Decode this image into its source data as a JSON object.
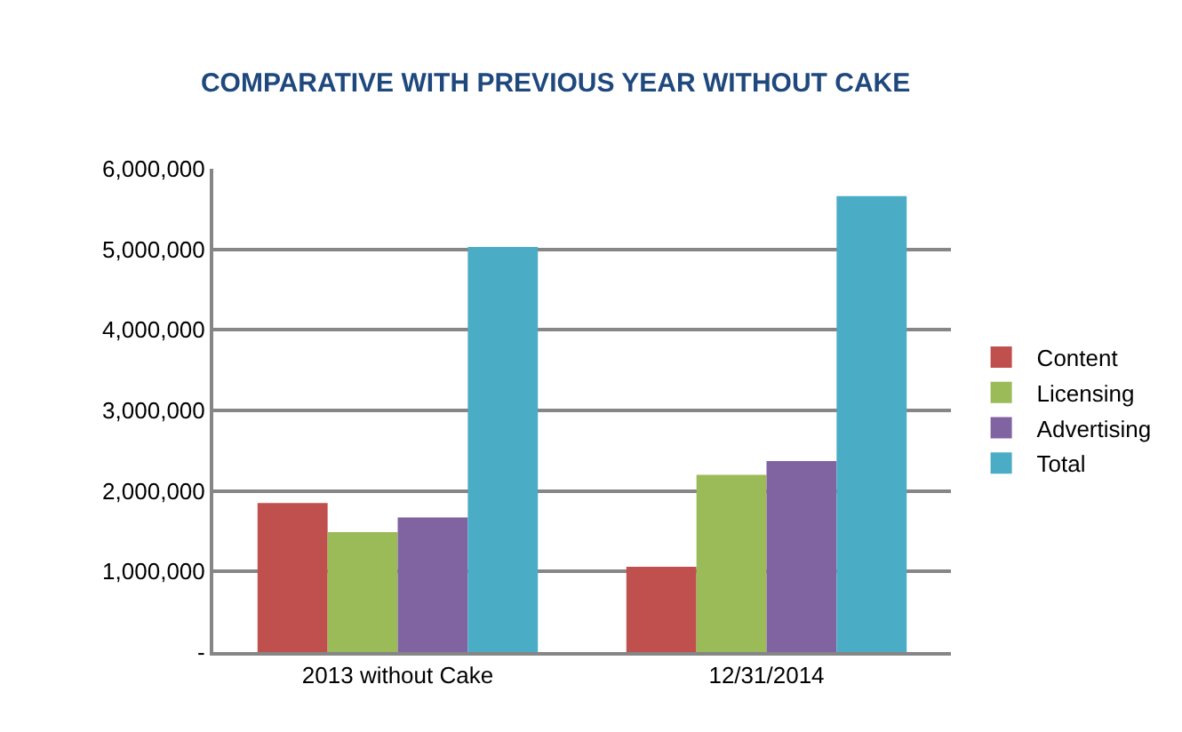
{
  "chart_data": {
    "type": "bar",
    "title": "COMPARATIVE WITH PREVIOUS YEAR WITHOUT CAKE",
    "categories": [
      "2013 without Cake",
      "12/31/2014"
    ],
    "series": [
      {
        "name": "Content",
        "color": "#c0504d",
        "values": [
          1850000,
          1060000
        ]
      },
      {
        "name": "Licensing",
        "color": "#9bbb59",
        "values": [
          1490000,
          2200000
        ]
      },
      {
        "name": "Advertising",
        "color": "#8064a2",
        "values": [
          1670000,
          2370000
        ]
      },
      {
        "name": "Total",
        "color": "#4bacc6",
        "values": [
          5030000,
          5660000
        ]
      }
    ],
    "ylim": [
      0,
      6000000
    ],
    "yticks": [
      {
        "value": 0,
        "label": "-"
      },
      {
        "value": 1000000,
        "label": "1,000,000"
      },
      {
        "value": 2000000,
        "label": "2,000,000"
      },
      {
        "value": 3000000,
        "label": "3,000,000"
      },
      {
        "value": 4000000,
        "label": "4,000,000"
      },
      {
        "value": 5000000,
        "label": "5,000,000"
      },
      {
        "value": 6000000,
        "label": "6,000,000"
      }
    ],
    "grid": "y",
    "legend": "right"
  }
}
